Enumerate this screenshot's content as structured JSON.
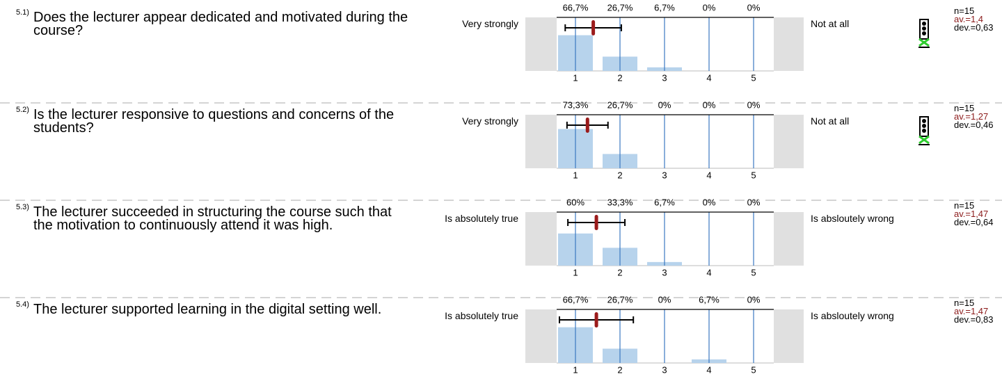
{
  "chart_data": [
    {
      "type": "bar",
      "number": "5.1)",
      "question": "Does the lecturer appear dedicated and motivated during the course?",
      "left_label": "Very strongly",
      "right_label": "Not at all",
      "categories": [
        "1",
        "2",
        "3",
        "4",
        "5"
      ],
      "values": [
        66.7,
        26.7,
        6.7,
        0,
        0
      ],
      "value_labels": [
        "66,7%",
        "26,7%",
        "6,7%",
        "0%",
        "0%"
      ],
      "n_label": "n=15",
      "mean": 1.4,
      "mean_label": "av.=1,4",
      "std": 0.63,
      "std_label": "dev.=0,63",
      "signal": true
    },
    {
      "type": "bar",
      "number": "5.2)",
      "question": "Is the lecturer responsive to questions and concerns of the students?",
      "left_label": "Very strongly",
      "right_label": "Not at all",
      "categories": [
        "1",
        "2",
        "3",
        "4",
        "5"
      ],
      "values": [
        73.3,
        26.7,
        0,
        0,
        0
      ],
      "value_labels": [
        "73,3%",
        "26,7%",
        "0%",
        "0%",
        "0%"
      ],
      "n_label": "n=15",
      "mean": 1.27,
      "mean_label": "av.=1,27",
      "std": 0.46,
      "std_label": "dev.=0,46",
      "signal": true
    },
    {
      "type": "bar",
      "number": "5.3)",
      "question": "The lecturer succeeded in structuring the course such that the motivation to continuously attend it was high.",
      "left_label": "Is absolutely true",
      "right_label": "Is absloutely wrong",
      "categories": [
        "1",
        "2",
        "3",
        "4",
        "5"
      ],
      "values": [
        60,
        33.3,
        6.7,
        0,
        0
      ],
      "value_labels": [
        "60%",
        "33,3%",
        "6,7%",
        "0%",
        "0%"
      ],
      "n_label": "n=15",
      "mean": 1.47,
      "mean_label": "av.=1,47",
      "std": 0.64,
      "std_label": "dev.=0,64",
      "signal": false
    },
    {
      "type": "bar",
      "number": "5.4)",
      "question": "The lecturer supported learning in the digital setting well.",
      "left_label": "Is absolutely true",
      "right_label": "Is absloutely wrong",
      "categories": [
        "1",
        "2",
        "3",
        "4",
        "5"
      ],
      "values": [
        66.7,
        26.7,
        0,
        6.7,
        0
      ],
      "value_labels": [
        "66,7%",
        "26,7%",
        "0%",
        "6,7%",
        "0%"
      ],
      "n_label": "n=15",
      "mean": 1.47,
      "mean_label": "av.=1,47",
      "std": 0.83,
      "std_label": "dev.=0,83",
      "signal": false
    }
  ]
}
